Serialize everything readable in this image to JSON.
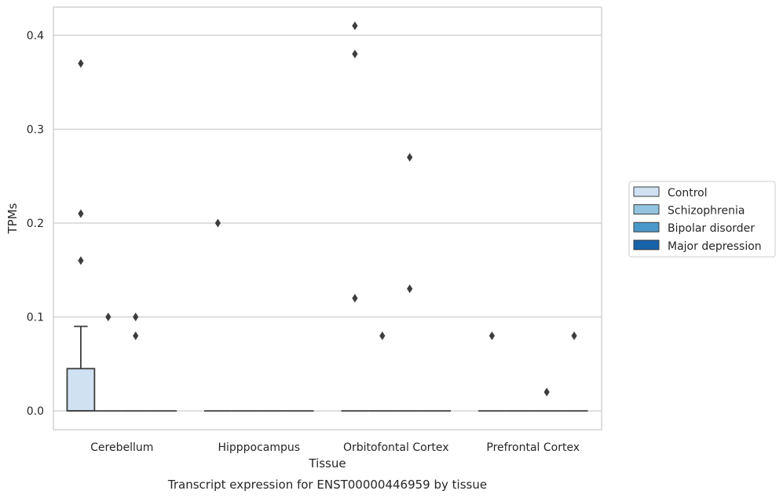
{
  "chart_data": {
    "type": "box",
    "title": "",
    "caption": "Transcript expression for ENST00000446959 by tissue",
    "xlabel": "Tissue",
    "ylabel": "TPMs",
    "ylim": [
      -0.02,
      0.43
    ],
    "yticks": [
      0.0,
      0.1,
      0.2,
      0.3,
      0.4
    ],
    "ytick_labels": [
      "0.0",
      "0.1",
      "0.2",
      "0.3",
      "0.4"
    ],
    "grid": "horizontal",
    "legend_position": "right",
    "categories": [
      "Cerebellum",
      "Hipppocampus",
      "Orbitofontal Cortex",
      "Prefrontal Cortex"
    ],
    "series": [
      {
        "name": "Control",
        "color": "#d0e1f2",
        "boxes": [
          {
            "q1": 0.0,
            "median": 0.0,
            "q3": 0.045,
            "whislo": 0.0,
            "whishi": 0.09,
            "fliers": [
              0.37,
              0.21,
              0.16
            ]
          },
          {
            "q1": 0.0,
            "median": 0.0,
            "q3": 0.0,
            "whislo": 0.0,
            "whishi": 0.0,
            "fliers": [
              0.2
            ]
          },
          {
            "q1": 0.0,
            "median": 0.0,
            "q3": 0.0,
            "whislo": 0.0,
            "whishi": 0.0,
            "fliers": [
              0.41,
              0.38,
              0.12
            ]
          },
          {
            "q1": 0.0,
            "median": 0.0,
            "q3": 0.0,
            "whislo": 0.0,
            "whishi": 0.0,
            "fliers": [
              0.08
            ]
          }
        ]
      },
      {
        "name": "Schizophrenia",
        "color": "#94c4df",
        "boxes": [
          {
            "q1": 0.0,
            "median": 0.0,
            "q3": 0.0,
            "whislo": 0.0,
            "whishi": 0.0,
            "fliers": [
              0.1
            ]
          },
          {
            "q1": 0.0,
            "median": 0.0,
            "q3": 0.0,
            "whislo": 0.0,
            "whishi": 0.0,
            "fliers": []
          },
          {
            "q1": 0.0,
            "median": 0.0,
            "q3": 0.0,
            "whislo": 0.0,
            "whishi": 0.0,
            "fliers": [
              0.08
            ]
          },
          {
            "q1": 0.0,
            "median": 0.0,
            "q3": 0.0,
            "whislo": 0.0,
            "whishi": 0.0,
            "fliers": []
          }
        ]
      },
      {
        "name": "Bipolar disorder",
        "color": "#4a98c9",
        "boxes": [
          {
            "q1": 0.0,
            "median": 0.0,
            "q3": 0.0,
            "whislo": 0.0,
            "whishi": 0.0,
            "fliers": [
              0.1,
              0.08
            ]
          },
          {
            "q1": 0.0,
            "median": 0.0,
            "q3": 0.0,
            "whislo": 0.0,
            "whishi": 0.0,
            "fliers": []
          },
          {
            "q1": 0.0,
            "median": 0.0,
            "q3": 0.0,
            "whislo": 0.0,
            "whishi": 0.0,
            "fliers": [
              0.27,
              0.13
            ]
          },
          {
            "q1": 0.0,
            "median": 0.0,
            "q3": 0.0,
            "whislo": 0.0,
            "whishi": 0.0,
            "fliers": [
              0.02
            ]
          }
        ]
      },
      {
        "name": "Major depression",
        "color": "#1764ab",
        "boxes": [
          {
            "q1": 0.0,
            "median": 0.0,
            "q3": 0.0,
            "whislo": 0.0,
            "whishi": 0.0,
            "fliers": []
          },
          {
            "q1": 0.0,
            "median": 0.0,
            "q3": 0.0,
            "whislo": 0.0,
            "whishi": 0.0,
            "fliers": []
          },
          {
            "q1": 0.0,
            "median": 0.0,
            "q3": 0.0,
            "whislo": 0.0,
            "whishi": 0.0,
            "fliers": []
          },
          {
            "q1": 0.0,
            "median": 0.0,
            "q3": 0.0,
            "whislo": 0.0,
            "whishi": 0.0,
            "fliers": [
              0.08
            ]
          }
        ]
      }
    ]
  }
}
